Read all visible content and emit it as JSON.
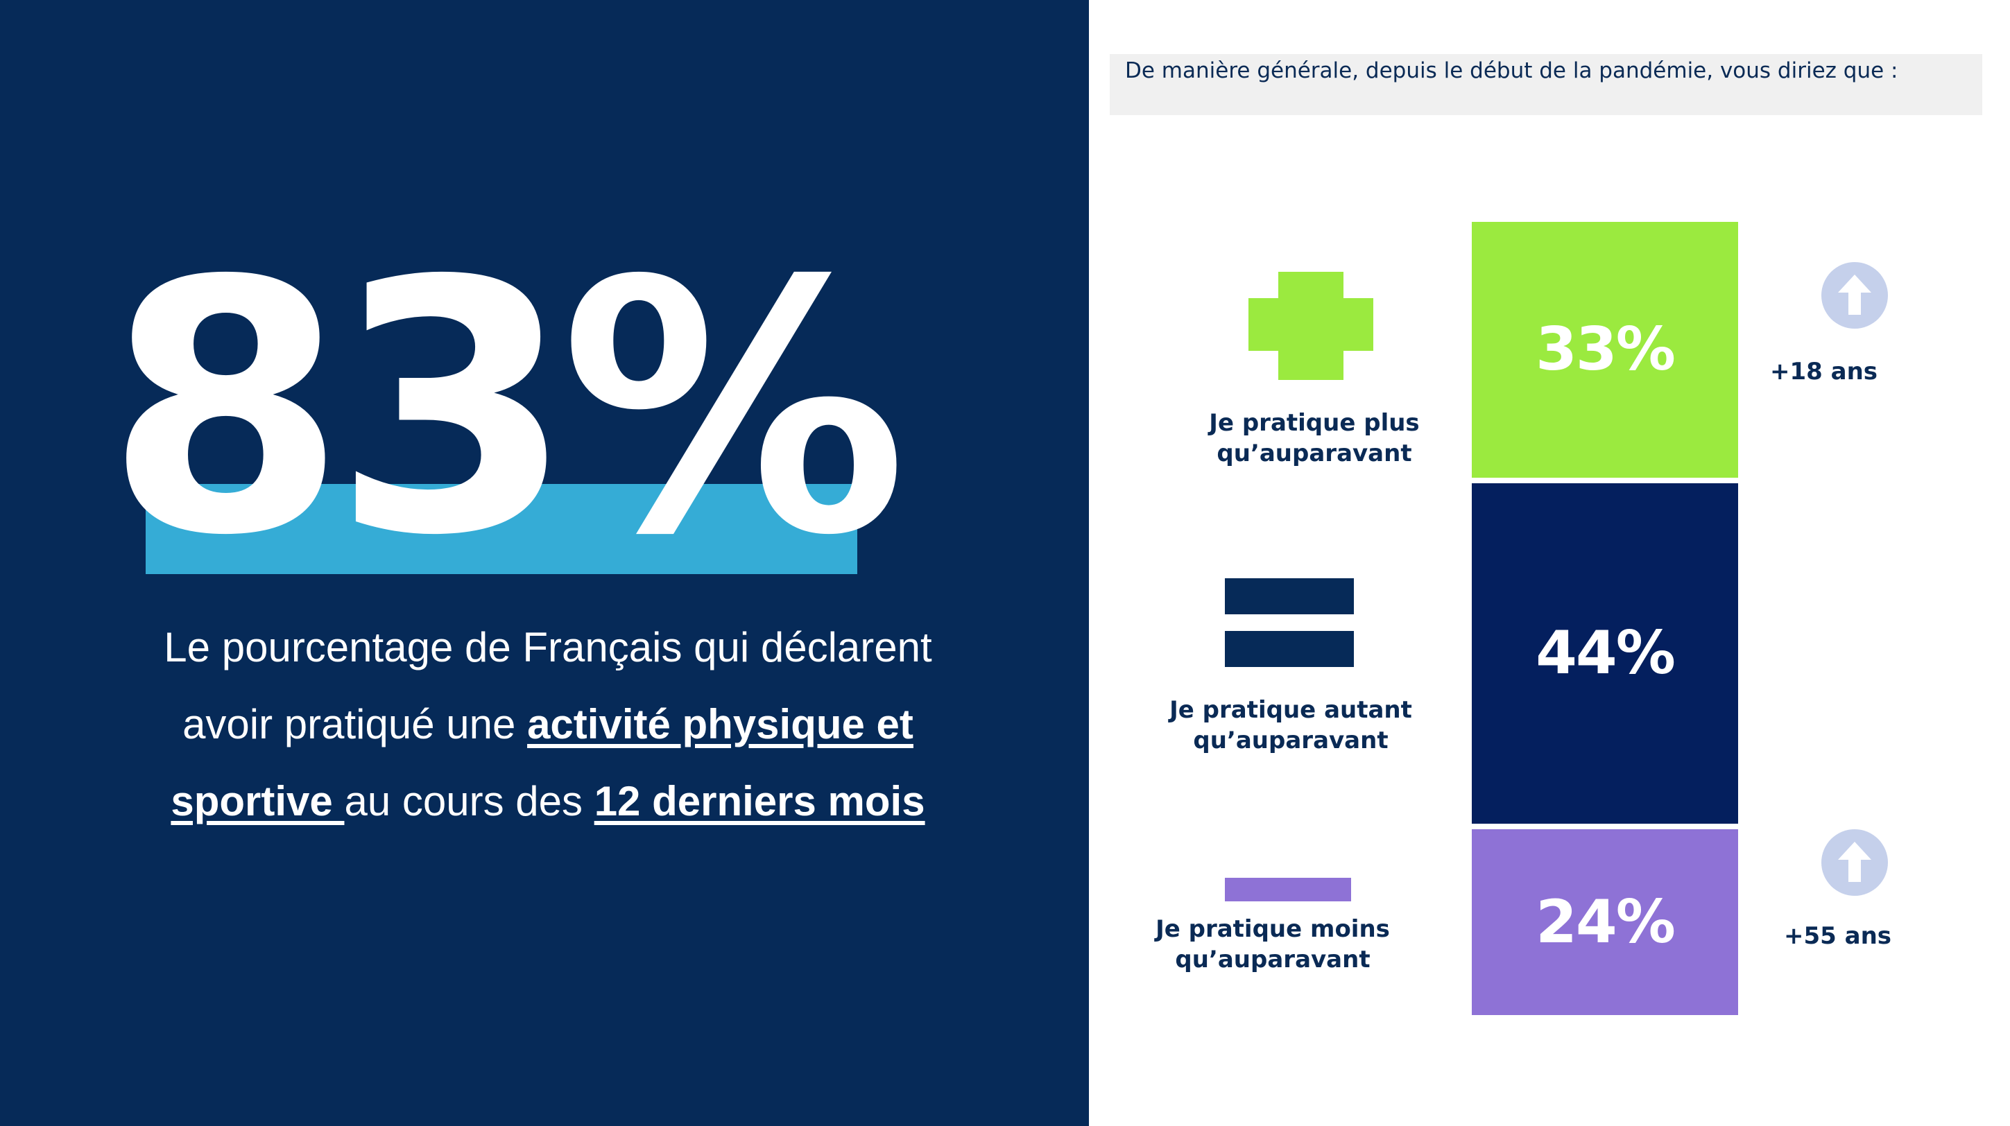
{
  "headline": {
    "value": "83%",
    "text_1": "Le pourcentage de Français qui déclarent avoir pratiqué une ",
    "emph_1": "activité physique et sportive ",
    "text_2": "au cours des ",
    "emph_2": "12 derniers mois"
  },
  "question": "De manière générale, depuis le début de la pandémie, vous diriez que :",
  "colors": {
    "navy_panel": "#062a58",
    "band": "#35acd6",
    "plus": "#9bea3f",
    "equal": "#041f5e",
    "minus": "#8e72d6",
    "arrow_circle": "#c5d0eb"
  },
  "chart_data": {
    "type": "bar",
    "orientation": "stacked-vertical",
    "title": "De manière générale, depuis le début de la pandémie, vous diriez que :",
    "categories": [
      "Je pratique plus qu’auparavant",
      "Je pratique autant qu’auparavant",
      "Je pratique moins qu’auparavant"
    ],
    "values": [
      33,
      44,
      24
    ],
    "value_labels": [
      "33%",
      "44%",
      "24%"
    ],
    "colors": [
      "#9bea3f",
      "#041f5e",
      "#8e72d6"
    ],
    "category_icons": [
      "plus-icon",
      "equals-icon",
      "minus-icon"
    ],
    "annotations": [
      {
        "category": "Je pratique plus qu’auparavant",
        "icon": "arrow-up-icon",
        "label": "+18 ans"
      },
      {
        "category": "Je pratique moins qu’auparavant",
        "icon": "arrow-up-icon",
        "label": "+55 ans"
      }
    ]
  }
}
